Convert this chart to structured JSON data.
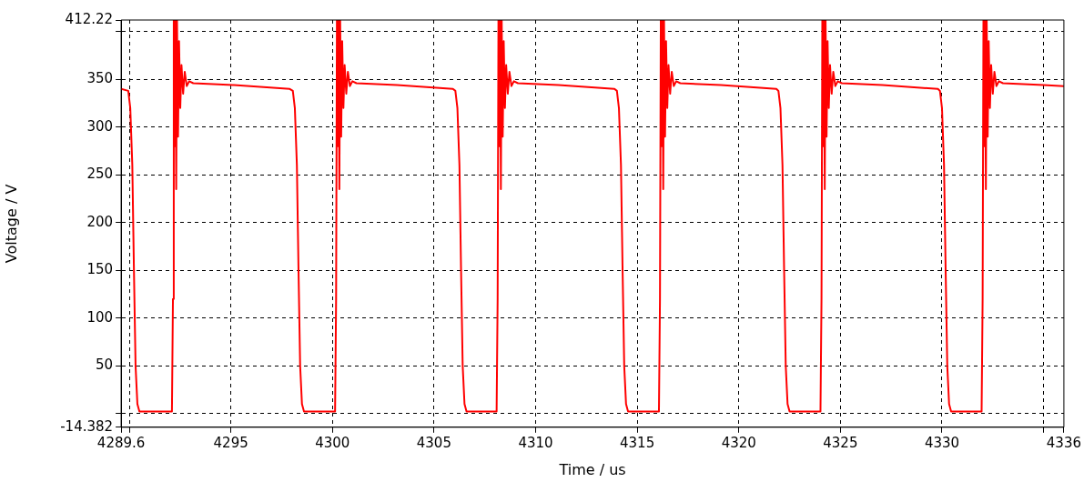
{
  "chart_data": {
    "type": "line",
    "xlabel": "Time / us",
    "ylabel": "Voltage / V",
    "grid": true,
    "line_style": "solid",
    "xlim": [
      4289.6,
      4336
    ],
    "ylim": [
      -14.382,
      412.22
    ],
    "xticks": [
      4289.6,
      {
        "value": 4290,
        "label": null
      },
      4295,
      4300,
      4305,
      4310,
      4315,
      4320,
      4325,
      4330,
      {
        "value": 4335,
        "label": null
      },
      4336
    ],
    "yticks": [
      -14.382,
      {
        "value": 0,
        "label": null
      },
      50,
      100,
      150,
      200,
      250,
      300,
      350,
      {
        "value": 400,
        "label": null
      },
      412.22
    ],
    "x": [
      4289.6,
      4289.95,
      4290.05,
      4290.15,
      4290.23,
      4290.31,
      4290.4,
      4290.5,
      4292.1,
      4292.15,
      4292.19,
      4292.23,
      4292.27,
      4292.31,
      4292.35,
      4292.4,
      4292.45,
      4292.51,
      4292.57,
      4292.65,
      4292.73,
      4292.83,
      4292.95,
      4293.15,
      4295.15,
      4297.9,
      4298.05,
      4298.15,
      4298.25,
      4298.33,
      4298.41,
      4298.5,
      4298.6,
      4300.13,
      4300.18,
      4300.22,
      4300.26,
      4300.3,
      4300.34,
      4300.38,
      4300.43,
      4300.48,
      4300.54,
      4300.6,
      4300.68,
      4300.76,
      4300.86,
      4300.98,
      4301.18,
      4303.18,
      4305.93,
      4306.05,
      4306.15,
      4306.25,
      4306.33,
      4306.41,
      4306.5,
      4306.6,
      4308.08,
      4308.13,
      4308.17,
      4308.21,
      4308.25,
      4308.29,
      4308.33,
      4308.38,
      4308.43,
      4308.49,
      4308.55,
      4308.63,
      4308.71,
      4308.81,
      4308.93,
      4309.13,
      4311.13,
      4313.88,
      4314.0,
      4314.1,
      4314.2,
      4314.28,
      4314.36,
      4314.45,
      4314.55,
      4316.07,
      4316.12,
      4316.16,
      4316.2,
      4316.24,
      4316.28,
      4316.32,
      4316.37,
      4316.42,
      4316.48,
      4316.54,
      4316.62,
      4316.7,
      4316.8,
      4316.92,
      4317.12,
      4319.12,
      4321.85,
      4321.95,
      4322.05,
      4322.15,
      4322.23,
      4322.31,
      4322.4,
      4322.5,
      4324.02,
      4324.07,
      4324.11,
      4324.15,
      4324.19,
      4324.23,
      4324.27,
      4324.32,
      4324.37,
      4324.43,
      4324.49,
      4324.57,
      4324.65,
      4324.75,
      4324.87,
      4325.07,
      4327.07,
      4329.8,
      4329.9,
      4330.0,
      4330.1,
      4330.18,
      4330.26,
      4330.35,
      4330.45,
      4331.95,
      4332.0,
      4332.04,
      4332.08,
      4332.12,
      4332.16,
      4332.2,
      4332.25,
      4332.3,
      4332.36,
      4332.42,
      4332.5,
      4332.58,
      4332.68,
      4332.8,
      4333.0,
      4335.0,
      4336
    ],
    "series": [
      {
        "color": "#ff0000",
        "values": [
          340,
          338,
          320,
          260,
          150,
          50,
          10,
          2,
          2,
          120,
          412,
          280,
          412,
          235,
          412,
          290,
          390,
          320,
          365,
          335,
          358,
          343,
          348,
          346,
          344,
          340,
          338,
          320,
          260,
          150,
          50,
          10,
          2,
          2,
          120,
          412,
          280,
          412,
          235,
          412,
          290,
          390,
          320,
          365,
          335,
          358,
          343,
          348,
          346,
          344,
          340,
          338,
          320,
          260,
          150,
          50,
          10,
          2,
          2,
          120,
          412,
          280,
          412,
          235,
          412,
          290,
          390,
          320,
          365,
          335,
          358,
          343,
          348,
          346,
          344,
          340,
          338,
          320,
          260,
          150,
          50,
          10,
          2,
          2,
          120,
          412,
          280,
          412,
          235,
          412,
          290,
          390,
          320,
          365,
          335,
          358,
          343,
          348,
          346,
          344,
          340,
          338,
          320,
          260,
          150,
          50,
          10,
          2,
          2,
          120,
          412,
          280,
          412,
          235,
          412,
          290,
          390,
          320,
          365,
          335,
          358,
          343,
          348,
          346,
          344,
          340,
          338,
          320,
          260,
          150,
          50,
          10,
          2,
          2,
          120,
          412,
          280,
          412,
          235,
          412,
          290,
          390,
          320,
          365,
          335,
          358,
          343,
          348,
          346,
          344,
          343
        ]
      }
    ]
  }
}
